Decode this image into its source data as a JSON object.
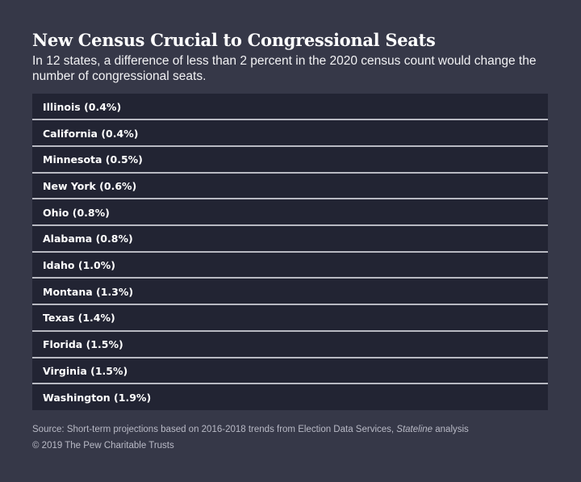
{
  "title": "New Census Crucial to Congressional Seats",
  "subtitle": "In 12 states, a difference of less than 2 percent in the 2020 census count would change the number of congressional seats.",
  "chart_data": {
    "type": "table",
    "rows": [
      {
        "state": "Illinois",
        "percent": 0.4,
        "label": "Illinois (0.4%)"
      },
      {
        "state": "California",
        "percent": 0.4,
        "label": "California (0.4%)"
      },
      {
        "state": "Minnesota",
        "percent": 0.5,
        "label": "Minnesota (0.5%)"
      },
      {
        "state": "New York",
        "percent": 0.6,
        "label": "New York (0.6%)"
      },
      {
        "state": "Ohio",
        "percent": 0.8,
        "label": "Ohio (0.8%)"
      },
      {
        "state": "Alabama",
        "percent": 0.8,
        "label": "Alabama (0.8%)"
      },
      {
        "state": "Idaho",
        "percent": 1.0,
        "label": "Idaho (1.0%)"
      },
      {
        "state": "Montana",
        "percent": 1.3,
        "label": "Montana (1.3%)"
      },
      {
        "state": "Texas",
        "percent": 1.4,
        "label": "Texas (1.4%)"
      },
      {
        "state": "Florida",
        "percent": 1.5,
        "label": "Florida (1.5%)"
      },
      {
        "state": "Virginia",
        "percent": 1.5,
        "label": "Virginia (1.5%)"
      },
      {
        "state": "Washington",
        "percent": 1.9,
        "label": "Washington (1.9%)"
      }
    ]
  },
  "source": {
    "prefix": "Source: Short-term projections based on 2016-2018 trends from Election Data Services, ",
    "italic": "Stateline",
    "suffix": " analysis"
  },
  "copyright": "© 2019 The Pew Charitable Trusts",
  "colors": {
    "background": "#363848",
    "table_background": "#222433",
    "divider": "#b8b9c2",
    "text": "#ffffff",
    "footnote": "#b9bac6"
  }
}
